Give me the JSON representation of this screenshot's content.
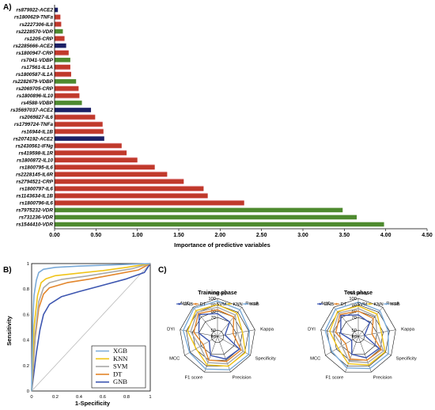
{
  "panels": {
    "a": "A)",
    "b": "B)",
    "c": "C)"
  },
  "colors": {
    "navy": "#1b2066",
    "green": "#4e8a2f",
    "red": "#c0392b",
    "pink": "#f3b9c4",
    "xgb": "#7aaad8",
    "knn": "#f0c419",
    "svm": "#a9a9a9",
    "dt": "#e3862c",
    "gnb": "#3d56b0"
  },
  "chart_data": [
    {
      "type": "bar",
      "orientation": "horizontal",
      "xlabel": "Importance of predictive variables",
      "xlim": [
        0,
        4.5
      ],
      "xticks": [
        "0.00",
        "0.50",
        "1.00",
        "1.50",
        "2.00",
        "2.50",
        "3.00",
        "3.50",
        "4.00",
        "4.50"
      ],
      "grid": false,
      "bars": [
        {
          "label": "rs879922-ACE2",
          "value": 0.04,
          "color": "navy"
        },
        {
          "label": "rs1800629-TNFa",
          "value": 0.07,
          "color": "red"
        },
        {
          "label": "rs2227306-IL8",
          "value": 0.08,
          "color": "red"
        },
        {
          "label": "rs2228570-VDR",
          "value": 0.1,
          "color": "green"
        },
        {
          "label": "rs1205-CRP",
          "value": 0.12,
          "color": "red"
        },
        {
          "label": "rs2285666-ACE2",
          "value": 0.14,
          "color": "navy"
        },
        {
          "label": "rs1800947-CRP",
          "value": 0.17,
          "color": "red"
        },
        {
          "label": "rs7041-VDBP",
          "value": 0.19,
          "color": "green"
        },
        {
          "label": "rs17561-IL1A",
          "value": 0.19,
          "color": "red"
        },
        {
          "label": "rs1800587-IL1A",
          "value": 0.2,
          "color": "red"
        },
        {
          "label": "rs2282679-VDBP",
          "value": 0.26,
          "color": "green"
        },
        {
          "label": "rs2069705-CRP",
          "value": 0.29,
          "color": "red"
        },
        {
          "label": "rs1800896-IL10",
          "value": 0.3,
          "color": "red"
        },
        {
          "label": "rs4588-VDBP",
          "value": 0.33,
          "color": "green"
        },
        {
          "label": "rs35697037-ACE2",
          "value": 0.44,
          "color": "navy"
        },
        {
          "label": "rs2069827-IL6",
          "value": 0.49,
          "color": "red"
        },
        {
          "label": "rs1799724-TNFa",
          "value": 0.58,
          "color": "red"
        },
        {
          "label": "rs16944-IL1B",
          "value": 0.59,
          "color": "red"
        },
        {
          "label": "rs2074192-ACE2",
          "value": 0.6,
          "color": "navy"
        },
        {
          "label": "rs2430561-IFNg",
          "value": 0.81,
          "color": "red"
        },
        {
          "label": "rs419598-IL1R",
          "value": 0.87,
          "color": "red"
        },
        {
          "label": "rs1800872-IL10",
          "value": 1.0,
          "color": "red"
        },
        {
          "label": "rs1800795-IL6",
          "value": 1.21,
          "color": "red"
        },
        {
          "label": "rs2228145-IL6R",
          "value": 1.36,
          "color": "red"
        },
        {
          "label": "rs2794521-CRP",
          "value": 1.56,
          "color": "red"
        },
        {
          "label": "rs1800797-IL6",
          "value": 1.8,
          "color": "red"
        },
        {
          "label": "rs1143634-IL1B",
          "value": 1.85,
          "color": "red"
        },
        {
          "label": "rs1800796-IL6",
          "value": 2.29,
          "color": "red"
        },
        {
          "label": "rs7975232-VDR",
          "value": 3.48,
          "color": "green"
        },
        {
          "label": "rs731236-VDR",
          "value": 3.65,
          "color": "green"
        },
        {
          "label": "rs1544410-VDR",
          "value": 3.98,
          "color": "green"
        }
      ]
    },
    {
      "type": "line",
      "xlabel": "1-Specificity",
      "ylabel": "Sensitivity",
      "xlim": [
        0,
        1
      ],
      "ylim": [
        0,
        1
      ],
      "xticks": [
        "0",
        "0.2",
        "0.4",
        "0.6",
        "0.8",
        "1"
      ],
      "yticks": [
        "0",
        "0.2",
        "0.4",
        "0.6",
        "0.8",
        "1"
      ],
      "legend_position": "bottom-right",
      "series": [
        {
          "name": "XGB",
          "color": "xgb",
          "points": [
            [
              0,
              0
            ],
            [
              0.01,
              0.55
            ],
            [
              0.02,
              0.75
            ],
            [
              0.04,
              0.87
            ],
            [
              0.06,
              0.93
            ],
            [
              0.1,
              0.955
            ],
            [
              0.2,
              0.97
            ],
            [
              0.4,
              0.98
            ],
            [
              0.7,
              0.99
            ],
            [
              1,
              1
            ]
          ]
        },
        {
          "name": "KNN",
          "color": "knn",
          "points": [
            [
              0,
              0
            ],
            [
              0.02,
              0.5
            ],
            [
              0.05,
              0.75
            ],
            [
              0.08,
              0.85
            ],
            [
              0.12,
              0.88
            ],
            [
              0.2,
              0.905
            ],
            [
              0.4,
              0.925
            ],
            [
              0.6,
              0.945
            ],
            [
              0.8,
              0.97
            ],
            [
              1,
              1
            ]
          ]
        },
        {
          "name": "SVM",
          "color": "svm",
          "points": [
            [
              0,
              0
            ],
            [
              0.03,
              0.45
            ],
            [
              0.06,
              0.7
            ],
            [
              0.1,
              0.81
            ],
            [
              0.15,
              0.85
            ],
            [
              0.25,
              0.875
            ],
            [
              0.45,
              0.9
            ],
            [
              0.65,
              0.93
            ],
            [
              0.85,
              0.96
            ],
            [
              1,
              1
            ]
          ]
        },
        {
          "name": "DT",
          "color": "dt",
          "points": [
            [
              0,
              0
            ],
            [
              0.03,
              0.42
            ],
            [
              0.06,
              0.65
            ],
            [
              0.1,
              0.76
            ],
            [
              0.15,
              0.81
            ],
            [
              0.3,
              0.85
            ],
            [
              0.5,
              0.88
            ],
            [
              0.7,
              0.915
            ],
            [
              0.9,
              0.95
            ],
            [
              1,
              1
            ]
          ]
        },
        {
          "name": "GNB",
          "color": "gnb",
          "points": [
            [
              0,
              0
            ],
            [
              0.04,
              0.3
            ],
            [
              0.07,
              0.48
            ],
            [
              0.1,
              0.6
            ],
            [
              0.15,
              0.68
            ],
            [
              0.25,
              0.74
            ],
            [
              0.4,
              0.78
            ],
            [
              0.6,
              0.83
            ],
            [
              0.8,
              0.88
            ],
            [
              0.95,
              0.93
            ],
            [
              1,
              1
            ]
          ]
        }
      ],
      "diagonal": true
    },
    {
      "type": "radar",
      "axes": [
        "Accuracy",
        "Recall",
        "Kappa",
        "Specificity",
        "Precision",
        "F1 score",
        "MCC",
        "DYI",
        "AUC"
      ],
      "rticks": [
        "40",
        "50",
        "70",
        "80",
        "90",
        "100"
      ],
      "rlim": [
        40,
        100
      ],
      "legend": [
        "GNB",
        "DT",
        "SVM",
        "KNN",
        "XGB"
      ],
      "legend_position": "top",
      "panels": [
        {
          "title": "Training phase",
          "series": [
            {
              "name": "GNB",
              "color": "gnb",
              "values": [
                76,
                70,
                52,
                80,
                78,
                72,
                55,
                70,
                85
              ]
            },
            {
              "name": "DT",
              "color": "dt",
              "values": [
                82,
                80,
                65,
                83,
                82,
                80,
                66,
                78,
                87
              ]
            },
            {
              "name": "SVM",
              "color": "svm",
              "values": [
                86,
                84,
                72,
                87,
                86,
                84,
                72,
                83,
                90
              ]
            },
            {
              "name": "KNN",
              "color": "knn",
              "values": [
                90,
                88,
                80,
                91,
                90,
                88,
                79,
                88,
                93
              ]
            },
            {
              "name": "XGB",
              "color": "xgb",
              "values": [
                96,
                95,
                91,
                97,
                96,
                95,
                91,
                95,
                98
              ]
            }
          ]
        },
        {
          "title": "Test phase",
          "series": [
            {
              "name": "GNB",
              "color": "gnb",
              "values": [
                74,
                68,
                50,
                78,
                76,
                70,
                52,
                68,
                83
              ]
            },
            {
              "name": "DT",
              "color": "dt",
              "values": [
                80,
                77,
                62,
                82,
                80,
                78,
                63,
                76,
                85
              ]
            },
            {
              "name": "SVM",
              "color": "svm",
              "values": [
                84,
                82,
                70,
                86,
                84,
                82,
                70,
                81,
                88
              ]
            },
            {
              "name": "KNN",
              "color": "knn",
              "values": [
                88,
                86,
                77,
                89,
                88,
                86,
                77,
                86,
                91
              ]
            },
            {
              "name": "XGB",
              "color": "xgb",
              "values": [
                94,
                93,
                88,
                95,
                94,
                93,
                88,
                93,
                96
              ]
            }
          ]
        }
      ]
    }
  ]
}
